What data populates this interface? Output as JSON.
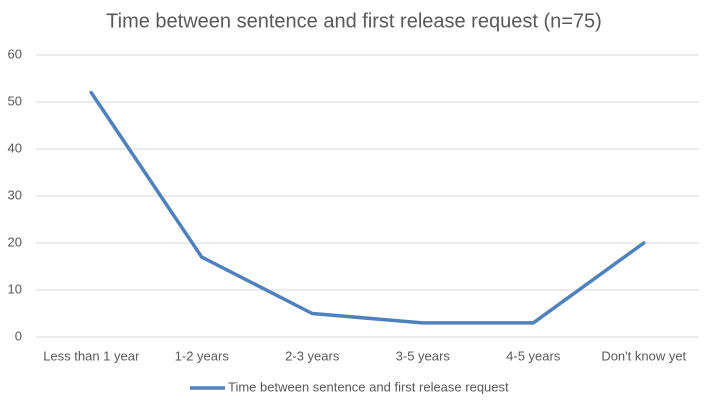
{
  "chart_data": {
    "type": "line",
    "title": "Time between sentence and first release request (n=75)",
    "categories": [
      "Less than 1 year",
      "1-2 years",
      "2-3 years",
      "3-5 years",
      "4-5 years",
      "Don't know yet"
    ],
    "series": [
      {
        "name": "Time between sentence and first release request",
        "color": "#4f81bd",
        "values": [
          52,
          17,
          5,
          3,
          3,
          20
        ]
      }
    ],
    "ylim": [
      0,
      60
    ],
    "yticks": [
      0,
      10,
      20,
      30,
      40,
      50,
      60
    ],
    "grid": true,
    "legend": "bottom"
  }
}
